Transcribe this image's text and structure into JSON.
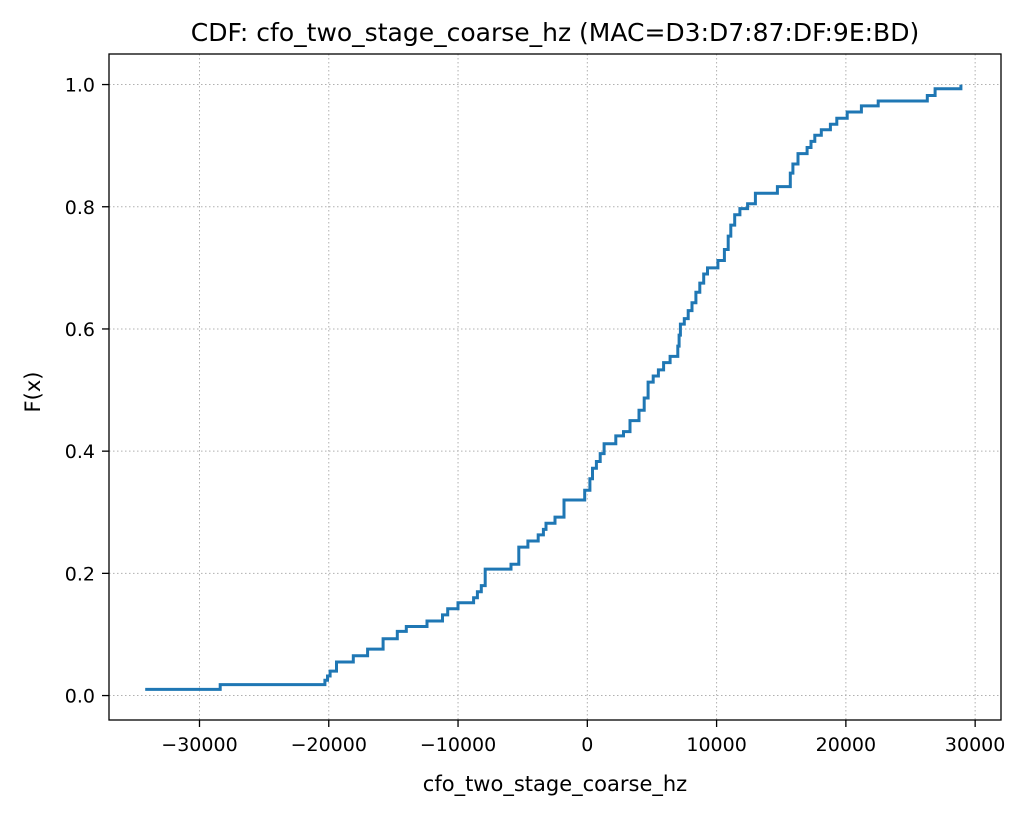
{
  "chart_data": {
    "type": "line",
    "title": "CDF: cfo_two_stage_coarse_hz (MAC=D3:D7:87:DF:9E:BD)",
    "xlabel": "cfo_two_stage_coarse_hz",
    "ylabel": "F(x)",
    "xlim": [
      -37000,
      32000
    ],
    "ylim": [
      -0.04,
      1.05
    ],
    "xticks": [
      -30000,
      -20000,
      -10000,
      0,
      10000,
      20000,
      30000
    ],
    "xtick_labels": [
      "−30000",
      "−20000",
      "−10000",
      "0",
      "10000",
      "20000",
      "30000"
    ],
    "yticks": [
      0.0,
      0.2,
      0.4,
      0.6,
      0.8,
      1.0
    ],
    "ytick_labels": [
      "0.0",
      "0.2",
      "0.4",
      "0.6",
      "0.8",
      "1.0"
    ],
    "grid": true,
    "step": "post",
    "series_color": "#1f77b4",
    "series": [
      {
        "x": [
          -34200,
          -28400,
          -20300,
          -20100,
          -19900,
          -19400,
          -18100,
          -17000,
          -15800,
          -14700,
          -14000,
          -12400,
          -11200,
          -10800,
          -10000,
          -8800,
          -8500,
          -8200,
          -7900,
          -5900,
          -5300,
          -4600,
          -3800,
          -3400,
          -3200,
          -2500,
          -1800,
          -200,
          200,
          400,
          700,
          1000,
          1300,
          2200,
          2800,
          3300,
          4000,
          4400,
          4700,
          5100,
          5500,
          5900,
          6400,
          7000,
          7100,
          7200,
          7500,
          7800,
          8100,
          8400,
          8700,
          9000,
          9300,
          10100,
          10600,
          10900,
          11100,
          11400,
          11800,
          12400,
          13000,
          14700,
          15700,
          15900,
          16300,
          17000,
          17300,
          17600,
          18100,
          18800,
          19300,
          20100,
          21200,
          22500,
          26300,
          26900,
          28900
        ],
        "y": [
          0.01,
          0.018,
          0.025,
          0.032,
          0.04,
          0.055,
          0.065,
          0.076,
          0.093,
          0.105,
          0.113,
          0.122,
          0.132,
          0.142,
          0.152,
          0.16,
          0.17,
          0.18,
          0.207,
          0.215,
          0.243,
          0.253,
          0.263,
          0.272,
          0.282,
          0.292,
          0.32,
          0.336,
          0.355,
          0.372,
          0.383,
          0.396,
          0.412,
          0.425,
          0.432,
          0.45,
          0.467,
          0.487,
          0.513,
          0.523,
          0.533,
          0.545,
          0.555,
          0.572,
          0.59,
          0.608,
          0.617,
          0.63,
          0.643,
          0.66,
          0.675,
          0.69,
          0.7,
          0.712,
          0.73,
          0.752,
          0.77,
          0.787,
          0.797,
          0.805,
          0.822,
          0.833,
          0.855,
          0.87,
          0.887,
          0.897,
          0.907,
          0.917,
          0.926,
          0.935,
          0.945,
          0.955,
          0.965,
          0.973,
          0.982,
          0.993,
          1.0
        ]
      }
    ]
  }
}
